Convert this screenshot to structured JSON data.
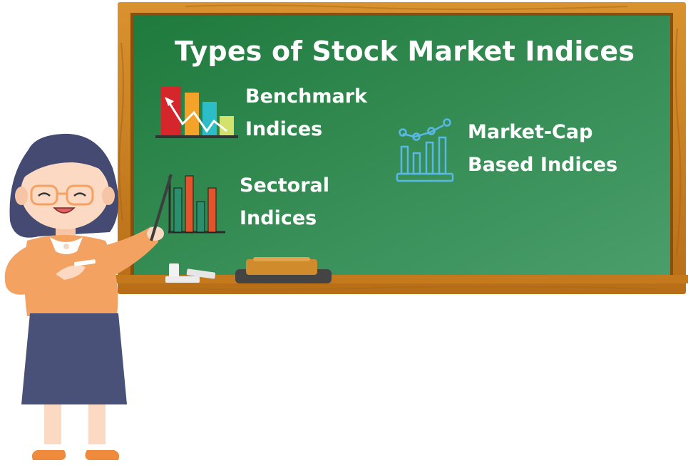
{
  "title": "Types of Stock Market Indices",
  "items": [
    {
      "line1": "Benchmark",
      "line2": "Indices",
      "icon": "bar-chart-arrow-icon",
      "colors": [
        "#d4262b",
        "#f3a22a",
        "#2dbdc8",
        "#d3e26a"
      ]
    },
    {
      "line1": "Sectoral",
      "line2": "Indices",
      "icon": "sector-bar-chart-icon",
      "colors": [
        "#2a8f6f",
        "#e3542a",
        "#2a8f6f",
        "#e3542a"
      ]
    },
    {
      "line1": "Market-Cap",
      "line2": "Based Indices",
      "icon": "growth-chart-icon",
      "colors": [
        "#5ab8e8"
      ]
    }
  ],
  "palette": {
    "board": "#2e8b57",
    "frame": "#c97d1e",
    "skin": "#fcd9c3",
    "hair": "#454a72",
    "shirt": "#f4a261",
    "skirt": "#4a5178"
  }
}
